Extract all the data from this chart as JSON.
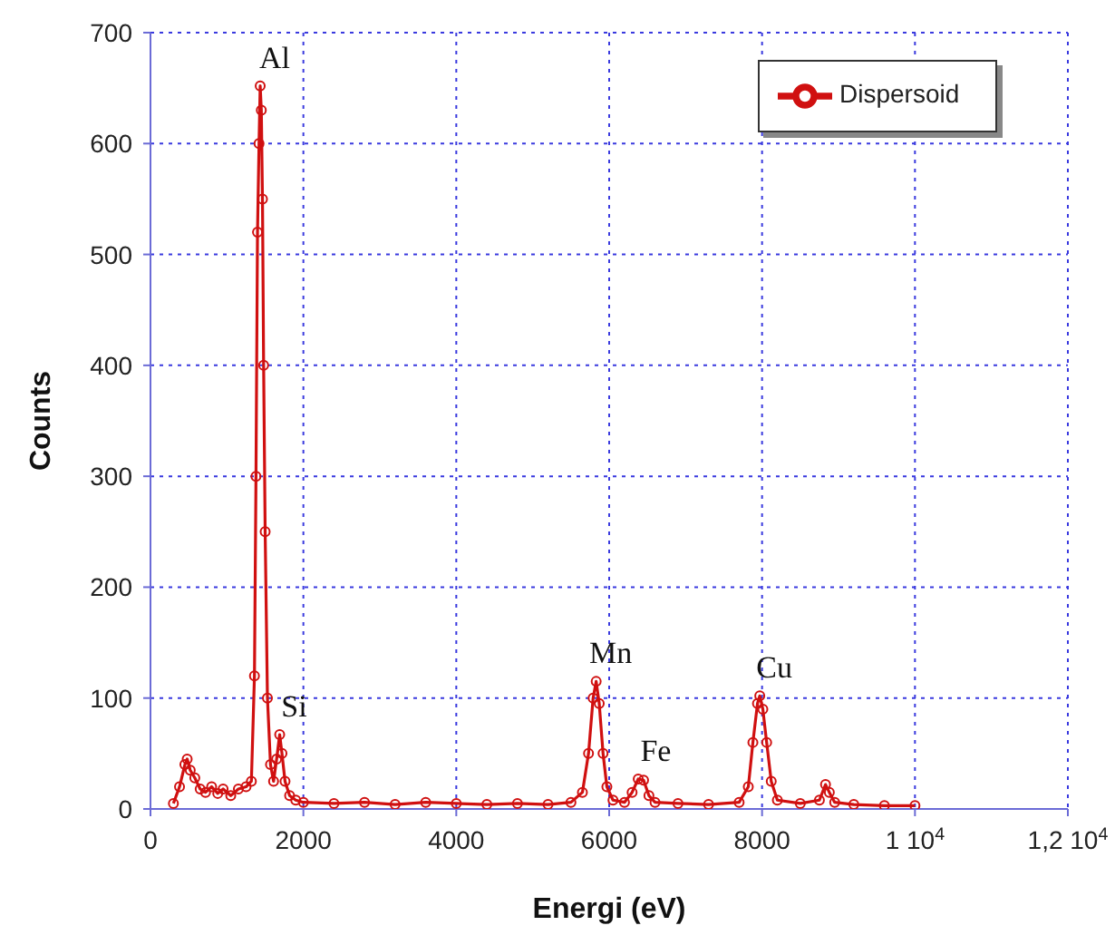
{
  "chart_data": {
    "type": "line",
    "xlabel": "Energi (eV)",
    "ylabel": "Counts",
    "xlim": [
      0,
      12000
    ],
    "xticks": [
      0,
      2000,
      4000,
      6000,
      8000,
      {
        "value": 10000,
        "label": "1 10$^{4}$"
      },
      {
        "value": 12000,
        "label": "1,2 10$^{4}$"
      }
    ],
    "ylim": [
      0,
      700
    ],
    "yticks": [
      0,
      100,
      200,
      300,
      400,
      500,
      600,
      700
    ],
    "grid": true,
    "legend": "top right",
    "marker": "circle",
    "line_style": "solid",
    "annotations": [
      {
        "text": "Al",
        "x": 1435,
        "y": 652
      },
      {
        "text": "Si",
        "x": 1690,
        "y": 67
      },
      {
        "text": "Mn",
        "x": 5830,
        "y": 115
      },
      {
        "text": "Fe",
        "x": 6420,
        "y": 27
      },
      {
        "text": "Cu",
        "x": 7970,
        "y": 102
      }
    ],
    "series": [
      {
        "name": "Dispersoid",
        "color": "#d01010",
        "x": [
          300,
          380,
          450,
          480,
          520,
          580,
          650,
          720,
          800,
          880,
          950,
          1050,
          1150,
          1250,
          1320,
          1360,
          1380,
          1400,
          1420,
          1435,
          1450,
          1465,
          1480,
          1500,
          1530,
          1570,
          1610,
          1650,
          1690,
          1720,
          1760,
          1820,
          1900,
          2000,
          2400,
          2800,
          3200,
          3600,
          4000,
          4400,
          4800,
          5200,
          5500,
          5650,
          5730,
          5790,
          5830,
          5870,
          5920,
          5970,
          6050,
          6200,
          6300,
          6380,
          6450,
          6520,
          6600,
          6900,
          7300,
          7700,
          7820,
          7880,
          7940,
          7970,
          8010,
          8060,
          8120,
          8200,
          8500,
          8750,
          8830,
          8880,
          8950,
          9200,
          9600,
          10000
        ],
        "values": [
          5,
          20,
          40,
          45,
          35,
          28,
          18,
          15,
          20,
          14,
          18,
          12,
          18,
          20,
          25,
          120,
          300,
          520,
          600,
          652,
          630,
          550,
          400,
          250,
          100,
          40,
          25,
          45,
          67,
          50,
          25,
          12,
          8,
          6,
          5,
          6,
          4,
          6,
          5,
          4,
          5,
          4,
          6,
          15,
          50,
          100,
          115,
          95,
          50,
          20,
          8,
          6,
          15,
          27,
          26,
          12,
          6,
          5,
          4,
          6,
          20,
          60,
          95,
          102,
          90,
          60,
          25,
          8,
          5,
          8,
          22,
          15,
          6,
          4,
          3,
          3
        ]
      }
    ]
  }
}
